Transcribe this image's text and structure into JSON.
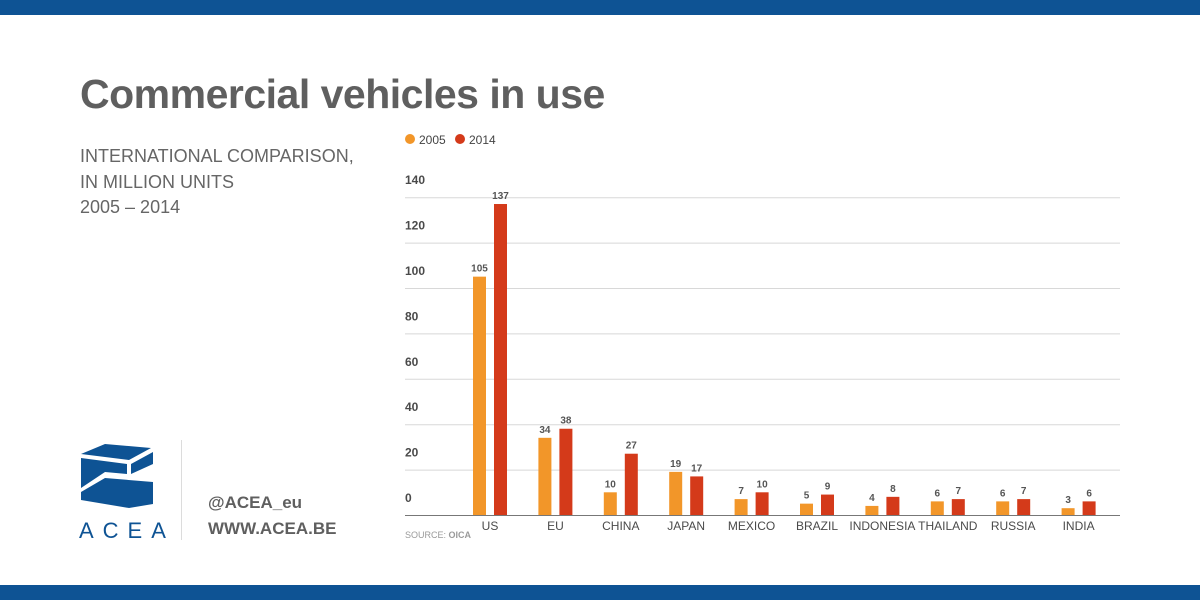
{
  "header": {
    "title": "Commercial vehicles in use",
    "subtitle_lines": [
      "INTERNATIONAL COMPARISON,",
      "IN MILLION UNITS",
      "2005 – 2014"
    ]
  },
  "footer": {
    "logo_text": "ACEA",
    "twitter": "@ACEA_eu",
    "website": "WWW.ACEA.BE",
    "source_prefix": "SOURCE: ",
    "source_name": "OICA"
  },
  "colors": {
    "band": "#0e5394",
    "series_2005": "#f29629",
    "series_2014": "#d43a1a",
    "logo_blue": "#0e5394"
  },
  "chart_data": {
    "type": "bar",
    "title": "Commercial vehicles in use",
    "categories": [
      "US",
      "EU",
      "CHINA",
      "JAPAN",
      "MEXICO",
      "BRAZIL",
      "INDONESIA",
      "THAILAND",
      "RUSSIA",
      "INDIA"
    ],
    "series": [
      {
        "name": "2005",
        "values": [
          105,
          34,
          10,
          19,
          7,
          5,
          4,
          6,
          6,
          3
        ]
      },
      {
        "name": "2014",
        "values": [
          137,
          38,
          27,
          17,
          10,
          9,
          8,
          7,
          7,
          6
        ]
      }
    ],
    "yticks": [
      0,
      20,
      40,
      60,
      80,
      100,
      120,
      140
    ],
    "ylim": [
      0,
      140
    ],
    "grid": true,
    "legend_position": "top-left"
  }
}
